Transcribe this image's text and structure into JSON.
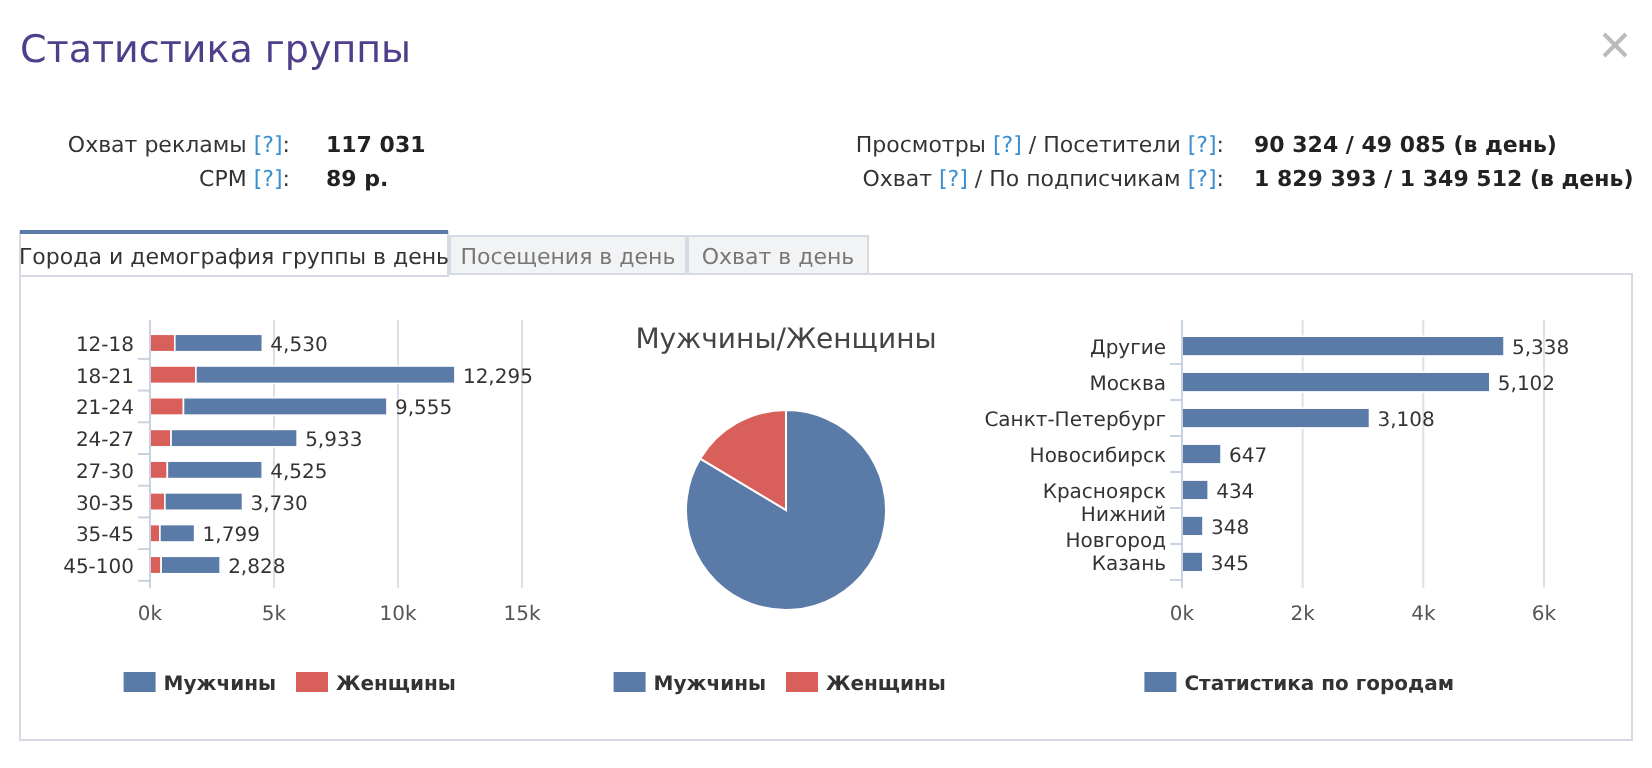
{
  "chart_data": [
    {
      "type": "other",
      "title": "Статистика группы",
      "annotations": [
        "Охват рекламы [?]:",
        "117 031",
        "CPM [?]:",
        "89 р.",
        "Просмотры [?] / Посетители [?]:",
        "90 324 / 49 085 (в день)",
        "Охват [?] / По подписчикам [?]:",
        "1 829 393 / 1 349 512 (в день)",
        "Города и демография группы в день",
        "Посещения в день",
        "Охват в день"
      ]
    },
    {
      "type": "bar",
      "orientation": "horizontal",
      "stacked": true,
      "categories": [
        "12-18",
        "18-21",
        "21-24",
        "24-27",
        "27-30",
        "30-35",
        "35-45",
        "45-100"
      ],
      "series": [
        {
          "name": "Женщины",
          "color": "#d9605a",
          "values": [
            1000,
            1850,
            1350,
            850,
            700,
            600,
            400,
            450
          ]
        },
        {
          "name": "Мужчины",
          "color": "#5a7aa8",
          "values": [
            3530,
            10445,
            8205,
            5083,
            3825,
            3130,
            1399,
            2378
          ]
        }
      ],
      "totals": [
        "4,530",
        "12,295",
        "9,555",
        "5,933",
        "4,525",
        "3,730",
        "1,799",
        "2,828"
      ],
      "xlim": [
        0,
        15000
      ],
      "xticks": [
        {
          "value": 0,
          "label": "0k"
        },
        {
          "value": 5000,
          "label": "5k"
        },
        {
          "value": 10000,
          "label": "10k"
        },
        {
          "value": 15000,
          "label": "15k"
        }
      ],
      "grid": "x",
      "legend": "bottom"
    },
    {
      "type": "pie",
      "title": "Мужчины/Женщины",
      "categories": [
        "Мужчины",
        "Женщины"
      ],
      "values": [
        83.6,
        16.4
      ],
      "colors": [
        "#5a7aa8",
        "#d9605a"
      ],
      "legend": "bottom"
    },
    {
      "type": "bar",
      "orientation": "horizontal",
      "categories": [
        "Другие",
        "Москва",
        "Санкт-Петербург",
        "Новосибирск",
        "Красноярск",
        "Нижний Новгород",
        "Казань"
      ],
      "series": [
        {
          "name": "Статистика по городам",
          "color": "#5a7aa8",
          "values": [
            5338,
            5102,
            3108,
            647,
            434,
            348,
            345
          ],
          "value_labels": [
            "5,338",
            "5,102",
            "3,108",
            "647",
            "434",
            "348",
            "345"
          ]
        }
      ],
      "xlim": [
        0,
        6000
      ],
      "xticks": [
        {
          "value": 0,
          "label": "0k"
        },
        {
          "value": 2000,
          "label": "2k"
        },
        {
          "value": 4000,
          "label": "4k"
        },
        {
          "value": 6000,
          "label": "6k"
        }
      ],
      "grid": "x",
      "legend": "bottom"
    }
  ]
}
